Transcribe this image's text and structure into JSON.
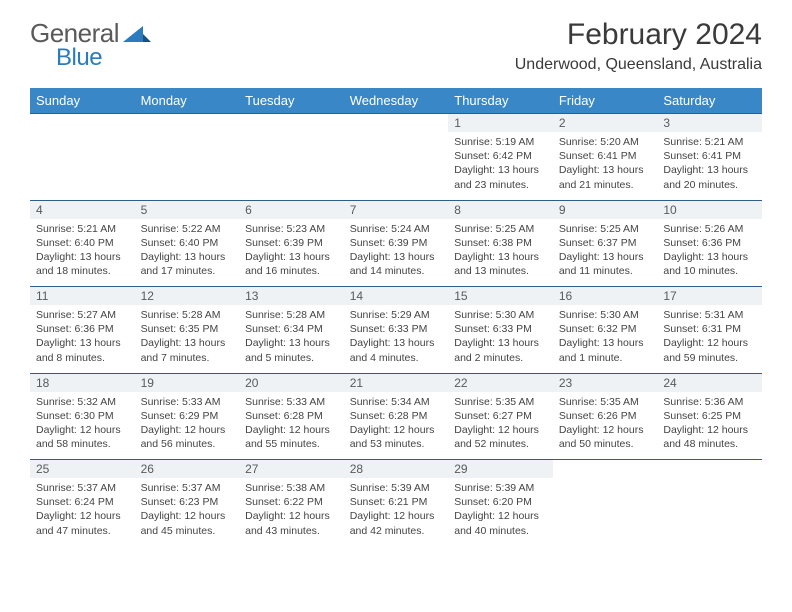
{
  "logo": {
    "textGray": "General",
    "textBlue": "Blue"
  },
  "title": "February 2024",
  "location": "Underwood, Queensland, Australia",
  "weekdays": [
    "Sunday",
    "Monday",
    "Tuesday",
    "Wednesday",
    "Thursday",
    "Friday",
    "Saturday"
  ],
  "colors": {
    "headerBg": "#3a87c7",
    "rowBorder": "#2f5d8a",
    "dayBg": "#eef2f5"
  },
  "weeks": [
    [
      null,
      null,
      null,
      null,
      {
        "n": "1",
        "sr": "5:19 AM",
        "ss": "6:42 PM",
        "dl": "13 hours and 23 minutes."
      },
      {
        "n": "2",
        "sr": "5:20 AM",
        "ss": "6:41 PM",
        "dl": "13 hours and 21 minutes."
      },
      {
        "n": "3",
        "sr": "5:21 AM",
        "ss": "6:41 PM",
        "dl": "13 hours and 20 minutes."
      }
    ],
    [
      {
        "n": "4",
        "sr": "5:21 AM",
        "ss": "6:40 PM",
        "dl": "13 hours and 18 minutes."
      },
      {
        "n": "5",
        "sr": "5:22 AM",
        "ss": "6:40 PM",
        "dl": "13 hours and 17 minutes."
      },
      {
        "n": "6",
        "sr": "5:23 AM",
        "ss": "6:39 PM",
        "dl": "13 hours and 16 minutes."
      },
      {
        "n": "7",
        "sr": "5:24 AM",
        "ss": "6:39 PM",
        "dl": "13 hours and 14 minutes."
      },
      {
        "n": "8",
        "sr": "5:25 AM",
        "ss": "6:38 PM",
        "dl": "13 hours and 13 minutes."
      },
      {
        "n": "9",
        "sr": "5:25 AM",
        "ss": "6:37 PM",
        "dl": "13 hours and 11 minutes."
      },
      {
        "n": "10",
        "sr": "5:26 AM",
        "ss": "6:36 PM",
        "dl": "13 hours and 10 minutes."
      }
    ],
    [
      {
        "n": "11",
        "sr": "5:27 AM",
        "ss": "6:36 PM",
        "dl": "13 hours and 8 minutes."
      },
      {
        "n": "12",
        "sr": "5:28 AM",
        "ss": "6:35 PM",
        "dl": "13 hours and 7 minutes."
      },
      {
        "n": "13",
        "sr": "5:28 AM",
        "ss": "6:34 PM",
        "dl": "13 hours and 5 minutes."
      },
      {
        "n": "14",
        "sr": "5:29 AM",
        "ss": "6:33 PM",
        "dl": "13 hours and 4 minutes."
      },
      {
        "n": "15",
        "sr": "5:30 AM",
        "ss": "6:33 PM",
        "dl": "13 hours and 2 minutes."
      },
      {
        "n": "16",
        "sr": "5:30 AM",
        "ss": "6:32 PM",
        "dl": "13 hours and 1 minute."
      },
      {
        "n": "17",
        "sr": "5:31 AM",
        "ss": "6:31 PM",
        "dl": "12 hours and 59 minutes."
      }
    ],
    [
      {
        "n": "18",
        "sr": "5:32 AM",
        "ss": "6:30 PM",
        "dl": "12 hours and 58 minutes."
      },
      {
        "n": "19",
        "sr": "5:33 AM",
        "ss": "6:29 PM",
        "dl": "12 hours and 56 minutes."
      },
      {
        "n": "20",
        "sr": "5:33 AM",
        "ss": "6:28 PM",
        "dl": "12 hours and 55 minutes."
      },
      {
        "n": "21",
        "sr": "5:34 AM",
        "ss": "6:28 PM",
        "dl": "12 hours and 53 minutes."
      },
      {
        "n": "22",
        "sr": "5:35 AM",
        "ss": "6:27 PM",
        "dl": "12 hours and 52 minutes."
      },
      {
        "n": "23",
        "sr": "5:35 AM",
        "ss": "6:26 PM",
        "dl": "12 hours and 50 minutes."
      },
      {
        "n": "24",
        "sr": "5:36 AM",
        "ss": "6:25 PM",
        "dl": "12 hours and 48 minutes."
      }
    ],
    [
      {
        "n": "25",
        "sr": "5:37 AM",
        "ss": "6:24 PM",
        "dl": "12 hours and 47 minutes."
      },
      {
        "n": "26",
        "sr": "5:37 AM",
        "ss": "6:23 PM",
        "dl": "12 hours and 45 minutes."
      },
      {
        "n": "27",
        "sr": "5:38 AM",
        "ss": "6:22 PM",
        "dl": "12 hours and 43 minutes."
      },
      {
        "n": "28",
        "sr": "5:39 AM",
        "ss": "6:21 PM",
        "dl": "12 hours and 42 minutes."
      },
      {
        "n": "29",
        "sr": "5:39 AM",
        "ss": "6:20 PM",
        "dl": "12 hours and 40 minutes."
      },
      null,
      null
    ]
  ],
  "labels": {
    "sunrise": "Sunrise: ",
    "sunset": "Sunset: ",
    "daylight": "Daylight: "
  }
}
